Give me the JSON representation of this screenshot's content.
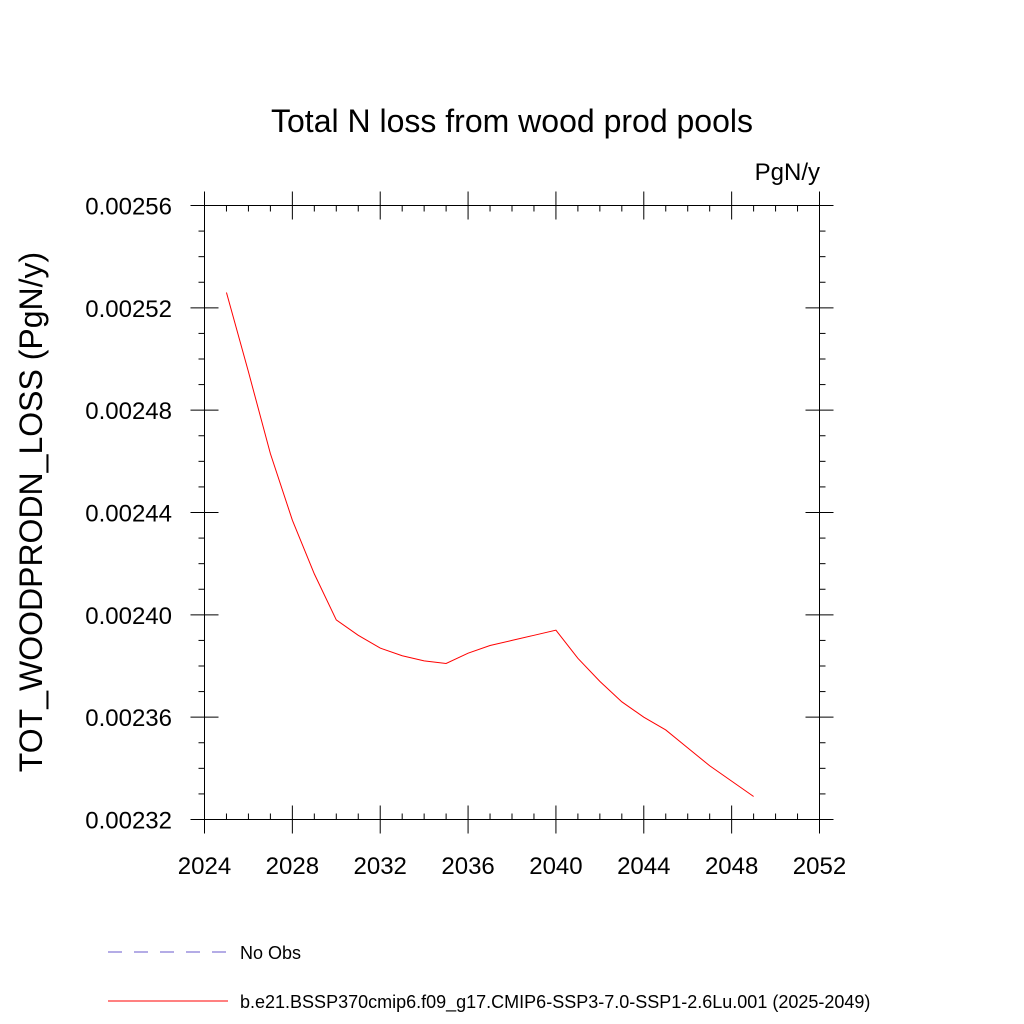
{
  "chart_data": {
    "type": "line",
    "title": "Total N loss from wood prod pools",
    "units_label": "PgN/y",
    "xlabel": "",
    "ylabel": "TOT_WOODPRODN_LOSS  (PgN/y)",
    "xlim": [
      2024,
      2052
    ],
    "ylim": [
      0.00232,
      0.00256
    ],
    "x_ticks": [
      "2024",
      "2028",
      "2032",
      "2036",
      "2040",
      "2044",
      "2048",
      "2052"
    ],
    "y_ticks": [
      "0.00232",
      "0.00236",
      "0.00240",
      "0.00244",
      "0.00248",
      "0.00252",
      "0.00256"
    ],
    "grid": false,
    "legend_position": "bottom",
    "series": [
      {
        "name": "b.e21.BSSP370cmip6.f09_g17.CMIP6-SSP3-7.0-SSP1-2.6Lu.001 (2025-2049)",
        "color": "#ff0000",
        "dash": "solid",
        "x": [
          2025,
          2026,
          2027,
          2028,
          2029,
          2030,
          2031,
          2032,
          2033,
          2034,
          2035,
          2036,
          2037,
          2038,
          2039,
          2040,
          2041,
          2042,
          2043,
          2044,
          2045,
          2046,
          2047,
          2048,
          2049
        ],
        "y": [
          0.002526,
          0.002495,
          0.002463,
          0.002437,
          0.002416,
          0.002398,
          0.002392,
          0.002387,
          0.002384,
          0.002382,
          0.002381,
          0.002385,
          0.002388,
          0.00239,
          0.002392,
          0.002394,
          0.002383,
          0.002374,
          0.002366,
          0.00236,
          0.002355,
          0.002348,
          0.002341,
          0.002335,
          0.002329
        ]
      }
    ],
    "legend": [
      {
        "label": "No Obs",
        "color": "#6a5acd",
        "dash": "dashed"
      },
      {
        "label": "b.e21.BSSP370cmip6.f09_g17.CMIP6-SSP3-7.0-SSP1-2.6Lu.001 (2025-2049)",
        "color": "#ff0000",
        "dash": "solid"
      }
    ]
  }
}
